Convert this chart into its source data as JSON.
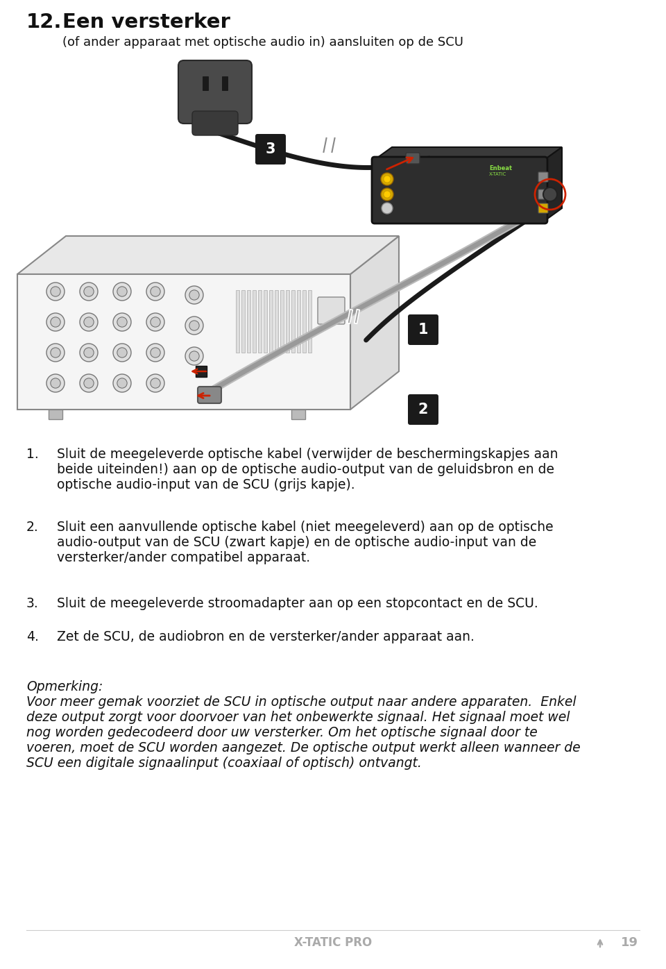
{
  "page_width": 9.6,
  "page_height": 13.96,
  "dpi": 100,
  "bg_color": "#ffffff",
  "title_number": "12.",
  "title_text": "Een versterker",
  "subtitle_text": "(of ander apparaat met optische audio in) aansluiten op de SCU",
  "step1_num": "1.",
  "step1_line1": "Sluit de meegeleverde optische kabel (verwijder de beschermingskapjes aan",
  "step1_line2": "beide uiteinden!) aan op de optische audio-output van de geluidsbron en de",
  "step1_line3": "optische audio-input van de SCU (grijs kapje).",
  "step2_num": "2.",
  "step2_line1": "Sluit een aanvullende optische kabel (niet meegeleverd) aan op de optische",
  "step2_line2": "audio-output van de SCU (zwart kapje) en de optische audio-input van de",
  "step2_line3": "versterker/ander compatibel apparaat.",
  "step3_num": "3.",
  "step3_line1": "Sluit de meegeleverde stroomadapter aan op een stopcontact en de SCU.",
  "step4_num": "4.",
  "step4_line1": "Zet de SCU, de audiobron en de versterker/ander apparaat aan.",
  "note_title": "Opmerking:",
  "note_line1": "Voor meer gemak voorziet de SCU in optische output naar andere apparaten.  Enkel",
  "note_line2": "deze output zorgt voor doorvoer van het onbewerkte signaal. Het signaal moet wel",
  "note_line3": "nog worden gedecodeerd door uw versterker. Om het optische signaal door te",
  "note_line4": "voeren, moet de SCU worden aangezet. De optische output werkt alleen wanneer de",
  "note_line5": "SCU een digitale signaalinput (coaxiaal of optisch) ontvangt.",
  "footer_text": "X-TATIC PRO",
  "footer_page": "19",
  "label_bg": "#1a1a1a",
  "label_fg": "#ffffff",
  "accent_red": "#cc2200",
  "dark_color": "#222222",
  "line_color": "#444444",
  "amp_face": "#f5f5f5",
  "amp_top": "#e8e8e8",
  "amp_right": "#dedede",
  "amp_edge": "#888888",
  "scu_body": "#2d2d2d",
  "knob_face": "#e0e0e0",
  "knob_edge": "#777777"
}
